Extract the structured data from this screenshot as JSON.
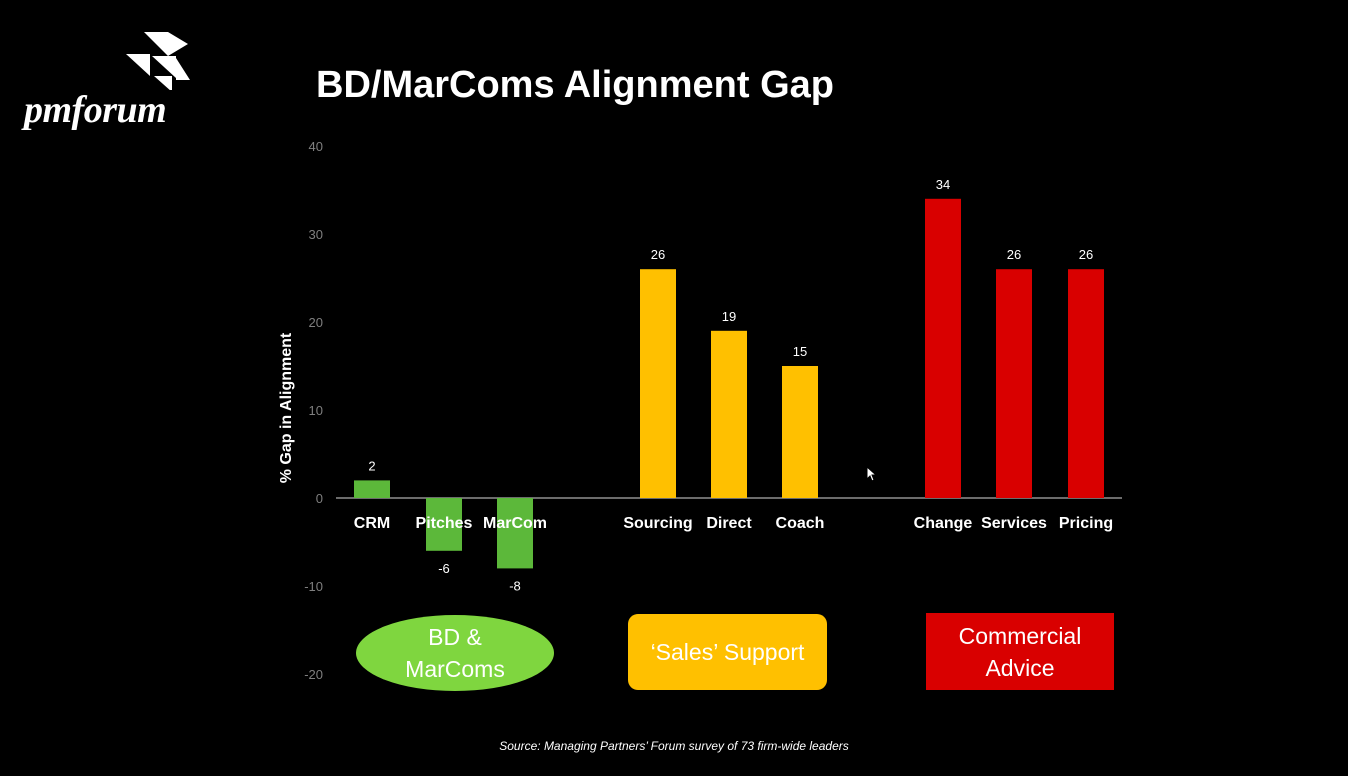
{
  "logo": {
    "text": "pmforum"
  },
  "title": "BD/MarComs Alignment Gap",
  "chart_data": {
    "type": "bar",
    "ylabel": "% Gap in Alignment",
    "ylim": [
      -20,
      40
    ],
    "yticks": [
      40,
      30,
      20,
      10,
      0,
      -10,
      -20
    ],
    "grid": false,
    "groups": [
      {
        "name": "BD & MarComs",
        "color": "#5cb83a",
        "categories": [
          "CRM",
          "Pitches",
          "MarCom"
        ],
        "values": [
          2,
          -6,
          -8
        ]
      },
      {
        "name": "'Sales' Support",
        "color": "#ffc000",
        "categories": [
          "Sourcing",
          "Direct",
          "Coach"
        ],
        "values": [
          26,
          19,
          15
        ]
      },
      {
        "name": "Commercial Advice",
        "color": "#d90000",
        "categories": [
          "Change",
          "Services",
          "Pricing"
        ],
        "values": [
          34,
          26,
          26
        ]
      }
    ]
  },
  "badges": {
    "green": "BD & MarComs",
    "yellow": "‘Sales’ Support",
    "red": "Commercial Advice"
  },
  "source": "Source: Managing Partners’ Forum survey of 73 firm-wide leaders"
}
